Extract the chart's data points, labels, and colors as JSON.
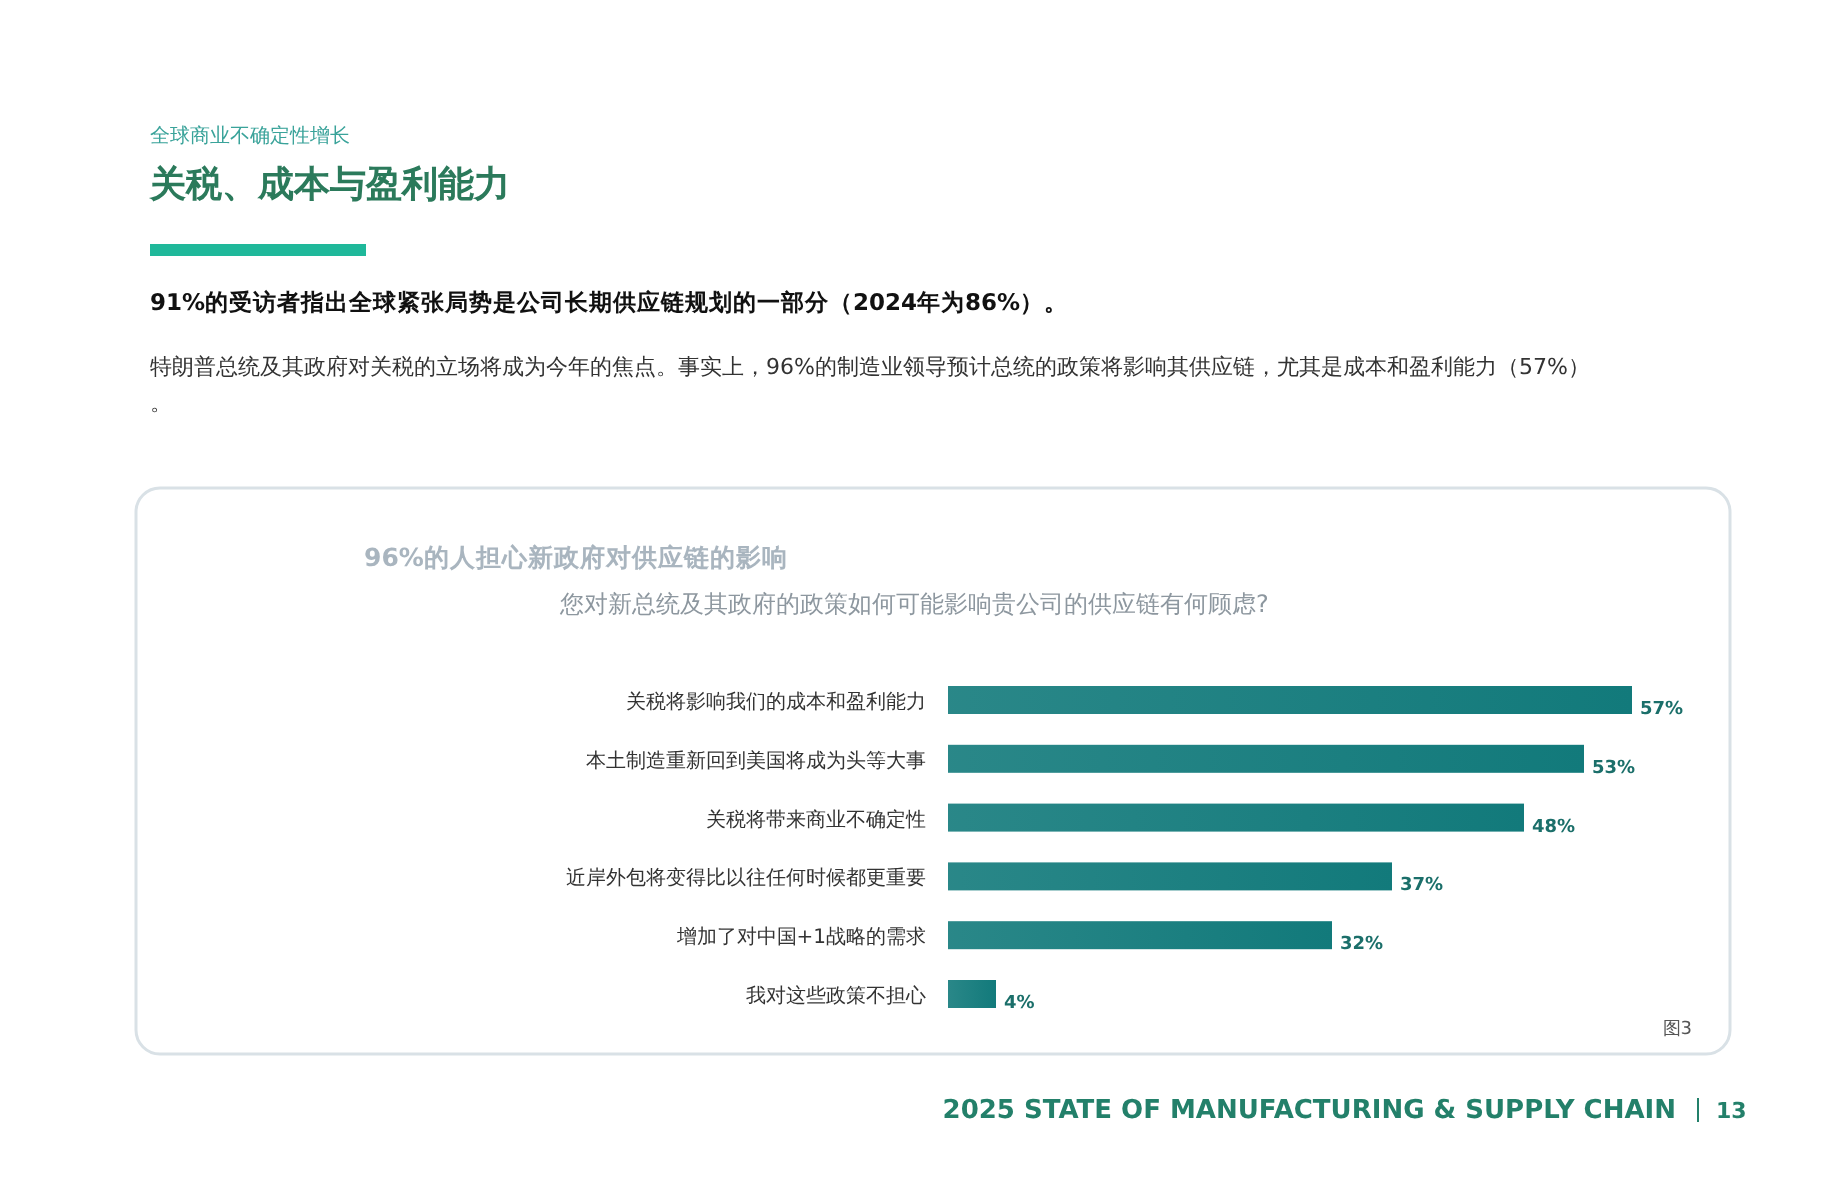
{
  "chart_data": {
    "type": "bar",
    "orientation": "horizontal",
    "title": "96%的人担心新政府对供应链的影响",
    "subtitle": "您对新总统及其政府的政策如何可能影响贵公司的供应链有何顾虑?",
    "categories": [
      "关税将影响我们的成本和盈利能力",
      "本土制造重新回到美国将成为头等大事",
      "关税将带来商业不确定性",
      "近岸外包将变得比以往任何时候都更重要",
      "增加了对中国+1战略的需求",
      "我对这些政策不担心"
    ],
    "values": [
      57,
      53,
      48,
      37,
      32,
      4
    ],
    "value_labels": [
      "57%",
      "53%",
      "48%",
      "37%",
      "32%",
      "4%"
    ],
    "color": "#127a7b",
    "annotations": [
      "全球商业不确定性增长",
      "关税、成本与盈利能力",
      "91%的受访者指出全球紧张局势是公司长期供应链规划的一部分（2024年为86%）。",
      "特朗普总统及其政府对关税的立场将成为今年的焦点。事实上，96%的制造业领导预计总统的政策将影响其供应链，尤其是成本和盈利能力（57%）",
      "。",
      "图3",
      "2025 STATE OF MANUFACTURING & SUPPLY CHAIN",
      "13"
    ]
  }
}
